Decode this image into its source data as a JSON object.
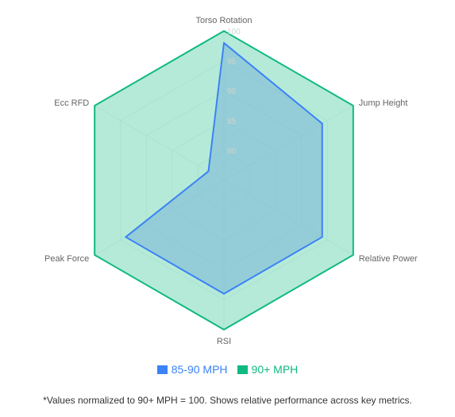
{
  "chart_data": {
    "type": "radar",
    "axes": [
      "Torso Rotation",
      "Jump Height",
      "Relative Power",
      "RSI",
      "Peak Force",
      "Ecc RFD"
    ],
    "r_ticks": [
      "80",
      "85",
      "90",
      "95",
      "100"
    ],
    "rlim": [
      75,
      100
    ],
    "series": [
      {
        "name": "85-90 MPH",
        "values": [
          98,
          94,
          94,
          94,
          94,
          78
        ],
        "color": "#3b82f6",
        "fill": "rgba(120,180,215,0.55)"
      },
      {
        "name": "90+ MPH",
        "values": [
          100,
          100,
          100,
          100,
          100,
          100
        ],
        "color": "#10b981",
        "fill": "rgba(150,225,200,0.7)"
      }
    ]
  },
  "footnote": "*Values normalized to 90+ MPH = 100. Shows relative performance across key metrics."
}
